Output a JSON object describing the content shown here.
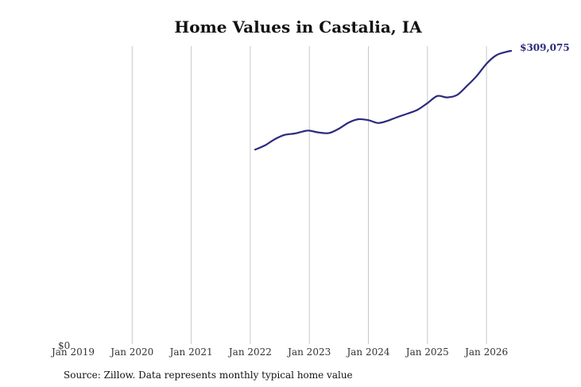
{
  "chart_data": {
    "type": "line",
    "title": "Home Values in Castalia, IA",
    "source": "Source: Zillow. Data represents monthly typical home value",
    "x_tick_labels": [
      "Jan 2019",
      "Jan 2020",
      "Jan 2021",
      "Jan 2022",
      "Jan 2023",
      "Jan 2024",
      "Jan 2025",
      "Jan 2026"
    ],
    "y_tick_labels": [
      "$0"
    ],
    "ylim": [
      0,
      309075
    ],
    "grid": "vertical",
    "line_color": "#2b2a7d",
    "end_label": "$309,075",
    "series": [
      {
        "points": [
          [
            "2022-02",
            205000
          ],
          [
            "2022-04",
            209500
          ],
          [
            "2022-06",
            216000
          ],
          [
            "2022-08",
            220500
          ],
          [
            "2022-10",
            222000
          ],
          [
            "2022-12",
            224500
          ],
          [
            "2023-01",
            225000
          ],
          [
            "2023-03",
            223000
          ],
          [
            "2023-05",
            222500
          ],
          [
            "2023-07",
            227000
          ],
          [
            "2023-09",
            233500
          ],
          [
            "2023-11",
            237000
          ],
          [
            "2024-01",
            236000
          ],
          [
            "2024-03",
            233000
          ],
          [
            "2024-05",
            235500
          ],
          [
            "2024-07",
            239500
          ],
          [
            "2024-09",
            243000
          ],
          [
            "2024-11",
            247000
          ],
          [
            "2025-01",
            254000
          ],
          [
            "2025-03",
            261500
          ],
          [
            "2025-05",
            260000
          ],
          [
            "2025-07",
            262500
          ],
          [
            "2025-09",
            272000
          ],
          [
            "2025-11",
            282500
          ],
          [
            "2026-01",
            295500
          ],
          [
            "2026-03",
            304500
          ],
          [
            "2026-05",
            308000
          ],
          [
            "2026-06",
            309075
          ]
        ]
      }
    ]
  }
}
